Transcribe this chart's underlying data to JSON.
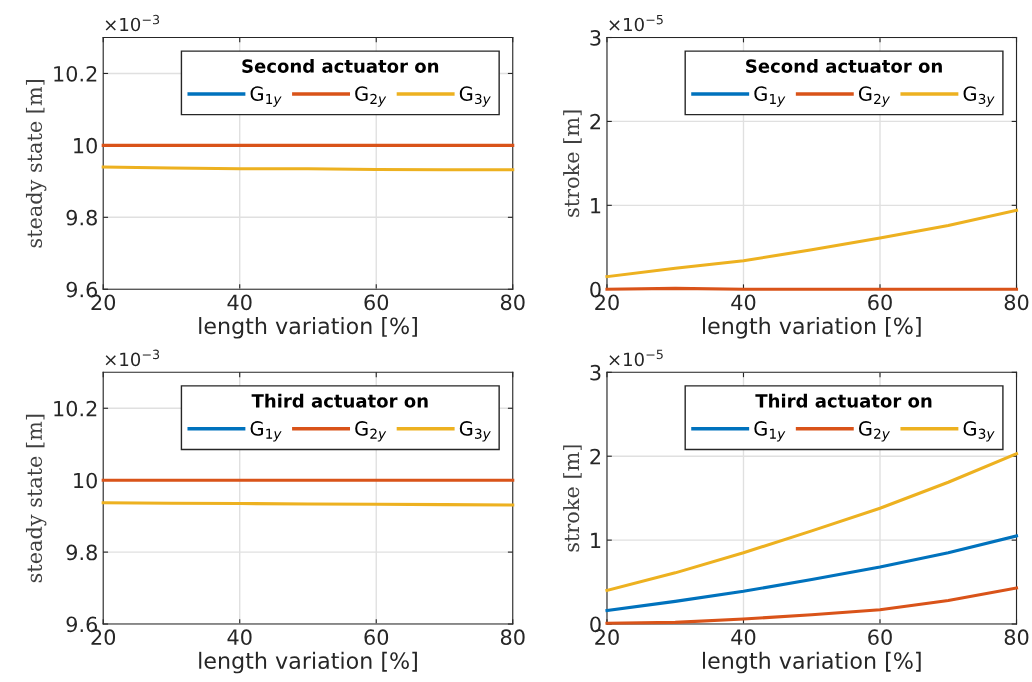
{
  "chart_data": [
    {
      "type": "line",
      "xlabel": "length variation [%]",
      "ylabel": "steady state [m]",
      "legend_title": "Second actuator on",
      "annotations": [
        "×10$^{−3}$"
      ],
      "x": [
        20,
        30,
        40,
        50,
        60,
        70,
        80
      ],
      "xlim": [
        20,
        80
      ],
      "xticks": [
        20,
        40,
        60,
        80
      ],
      "ylim": [
        9.6,
        10.3
      ],
      "yticks": [
        9.6,
        9.8,
        10,
        10.2
      ],
      "grid": true,
      "legend": "top right",
      "series": [
        {
          "name": "G$_{1y}$",
          "color": "#0072bd",
          "values": [
            null,
            null,
            null,
            null,
            null,
            null,
            null
          ]
        },
        {
          "name": "G$_{2y}$",
          "color": "#d95319",
          "values": [
            10.0,
            10.0,
            10.0,
            10.0,
            10.0,
            10.0,
            10.0
          ]
        },
        {
          "name": "G$_{3y}$",
          "color": "#edb120",
          "values": [
            9.94,
            9.937,
            9.935,
            9.935,
            9.933,
            9.932,
            9.932
          ]
        }
      ]
    },
    {
      "type": "line",
      "xlabel": "length variation [%]",
      "ylabel": "stroke [m]",
      "legend_title": "Second actuator on",
      "annotations": [
        "×10$^{−5}$"
      ],
      "x": [
        20,
        30,
        40,
        50,
        60,
        70,
        80
      ],
      "xlim": [
        20,
        80
      ],
      "xticks": [
        20,
        40,
        60,
        80
      ],
      "ylim": [
        0,
        3
      ],
      "yticks": [
        0,
        1,
        2,
        3
      ],
      "grid": true,
      "legend": "top right",
      "series": [
        {
          "name": "G$_{1y}$",
          "color": "#0072bd",
          "values": [
            null,
            null,
            null,
            null,
            null,
            null,
            null
          ]
        },
        {
          "name": "G$_{2y}$",
          "color": "#d95319",
          "values": [
            0,
            0.01,
            0,
            0,
            0,
            0,
            0
          ]
        },
        {
          "name": "G$_{3y}$",
          "color": "#edb120",
          "values": [
            0.15,
            0.25,
            0.34,
            0.47,
            0.61,
            0.76,
            0.94
          ]
        }
      ]
    },
    {
      "type": "line",
      "xlabel": "length variation [%]",
      "ylabel": "steady state [m]",
      "legend_title": "Third actuator on",
      "annotations": [
        "×10$^{−3}$"
      ],
      "x": [
        20,
        30,
        40,
        50,
        60,
        70,
        80
      ],
      "xlim": [
        20,
        80
      ],
      "xticks": [
        20,
        40,
        60,
        80
      ],
      "ylim": [
        9.6,
        10.3
      ],
      "yticks": [
        9.6,
        9.8,
        10,
        10.2
      ],
      "grid": true,
      "legend": "top right",
      "series": [
        {
          "name": "G$_{1y}$",
          "color": "#0072bd",
          "values": [
            null,
            null,
            null,
            null,
            null,
            null,
            null
          ]
        },
        {
          "name": "G$_{2y}$",
          "color": "#d95319",
          "values": [
            10.0,
            10.0,
            10.0,
            10.0,
            10.0,
            10.0,
            10.0
          ]
        },
        {
          "name": "G$_{3y}$",
          "color": "#edb120",
          "values": [
            9.937,
            9.936,
            9.935,
            9.934,
            9.933,
            9.932,
            9.931
          ]
        }
      ]
    },
    {
      "type": "line",
      "xlabel": "length variation [%]",
      "ylabel": "stroke [m]",
      "legend_title": "Third actuator on",
      "annotations": [
        "×10$^{−5}$"
      ],
      "x": [
        20,
        30,
        40,
        50,
        60,
        70,
        80
      ],
      "xlim": [
        20,
        80
      ],
      "xticks": [
        20,
        40,
        60,
        80
      ],
      "ylim": [
        0,
        3
      ],
      "yticks": [
        0,
        1,
        2,
        3
      ],
      "grid": true,
      "legend": "top right",
      "series": [
        {
          "name": "G$_{1y}$",
          "color": "#0072bd",
          "values": [
            0.16,
            0.27,
            0.39,
            0.53,
            0.68,
            0.85,
            1.05
          ]
        },
        {
          "name": "G$_{2y}$",
          "color": "#d95319",
          "values": [
            0.01,
            0.02,
            0.06,
            0.11,
            0.17,
            0.28,
            0.43
          ]
        },
        {
          "name": "G$_{3y}$",
          "color": "#edb120",
          "values": [
            0.4,
            0.61,
            0.85,
            1.11,
            1.38,
            1.69,
            2.03
          ]
        }
      ]
    }
  ]
}
